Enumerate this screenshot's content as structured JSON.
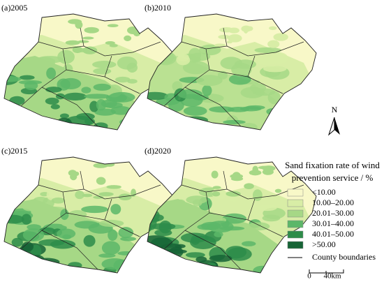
{
  "panels": [
    {
      "label": "(a)2005"
    },
    {
      "label": "(b)2010"
    },
    {
      "label": "(c)2015"
    },
    {
      "label": "(d)2020"
    }
  ],
  "north_label": "N",
  "legend": {
    "title_lines": [
      "Sand fixation rate of wind",
      "prevention service / %"
    ],
    "classes": [
      {
        "label": "<10.00",
        "color": "#f8f8c8"
      },
      {
        "label": "10.00–20.00",
        "color": "#d8eda6"
      },
      {
        "label": "20.01–30.00",
        "color": "#a6d886"
      },
      {
        "label": "30.01–40.00",
        "color": "#5cb768"
      },
      {
        "label": "40.01–50.00",
        "color": "#2d8c4a"
      },
      {
        "label": ">50.00",
        "color": "#166436"
      }
    ],
    "boundary_label": "County boundaries"
  },
  "scale_bar": {
    "start_label": "0",
    "end_label": "40km"
  }
}
